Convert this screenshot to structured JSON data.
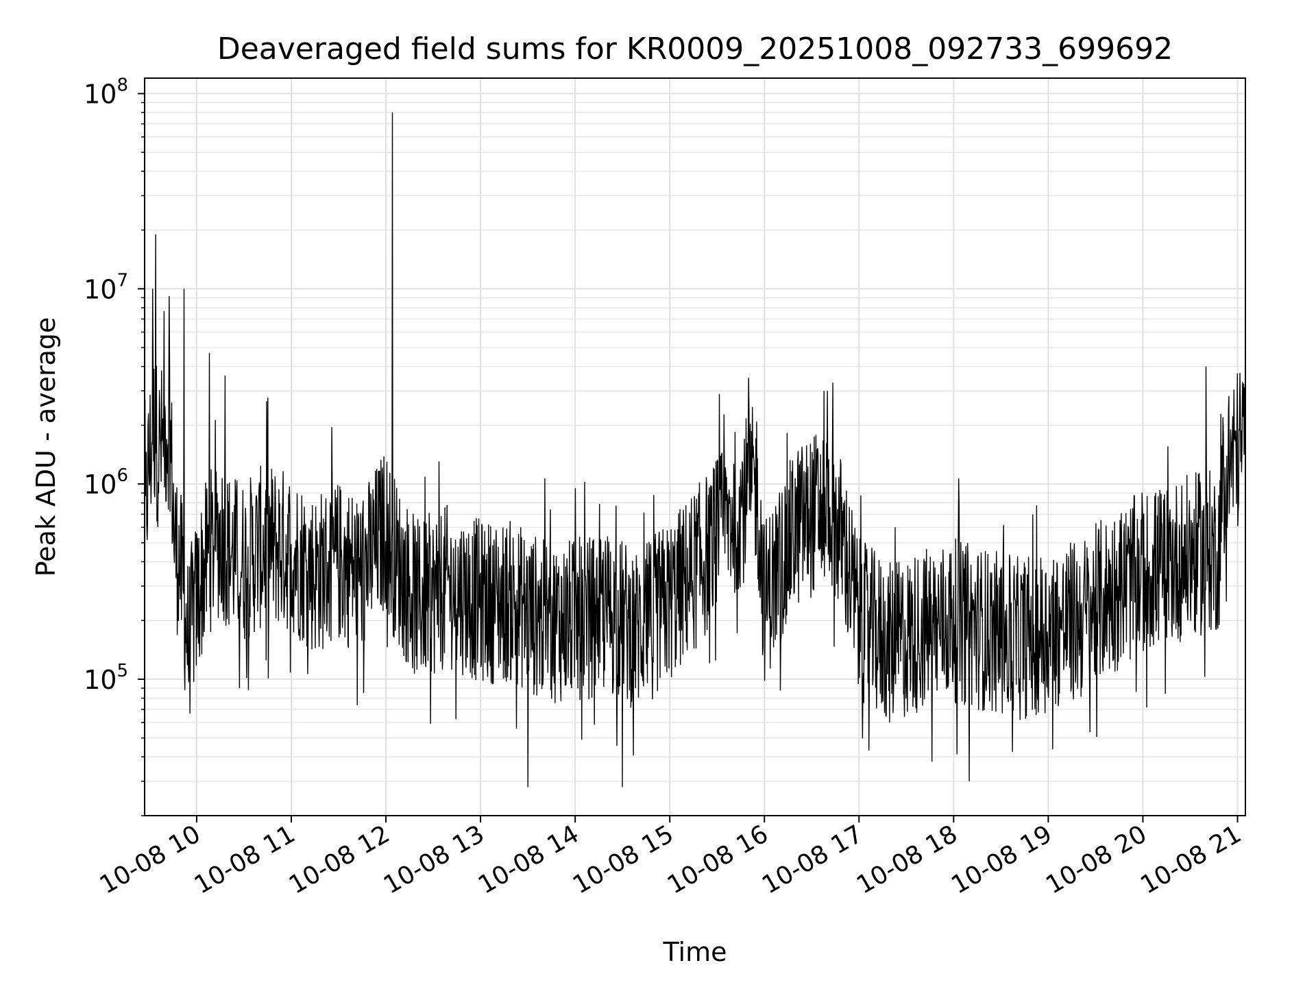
{
  "chart_data": {
    "type": "line",
    "title": "Deaveraged field sums for KR0009_20251008_092733_699692",
    "xlabel": "Time",
    "ylabel": "Peak ADU - average",
    "y_scale": "log",
    "ylim": [
      20000,
      120000000
    ],
    "xlim": [
      "2025-10-08 09:27",
      "2025-10-08 21:05"
    ],
    "grid": true,
    "legend": "none",
    "x_ticks": [
      {
        "label": "10-08 10",
        "value": "2025-10-08 10:00"
      },
      {
        "label": "10-08 11",
        "value": "2025-10-08 11:00"
      },
      {
        "label": "10-08 12",
        "value": "2025-10-08 12:00"
      },
      {
        "label": "10-08 13",
        "value": "2025-10-08 13:00"
      },
      {
        "label": "10-08 14",
        "value": "2025-10-08 14:00"
      },
      {
        "label": "10-08 15",
        "value": "2025-10-08 15:00"
      },
      {
        "label": "10-08 16",
        "value": "2025-10-08 16:00"
      },
      {
        "label": "10-08 17",
        "value": "2025-10-08 17:00"
      },
      {
        "label": "10-08 18",
        "value": "2025-10-08 18:00"
      },
      {
        "label": "10-08 19",
        "value": "2025-10-08 19:00"
      },
      {
        "label": "10-08 20",
        "value": "2025-10-08 20:00"
      },
      {
        "label": "10-08 21",
        "value": "2025-10-08 21:00"
      }
    ],
    "y_ticks": [
      {
        "base": "10",
        "exp": "5",
        "value": 100000
      },
      {
        "base": "10",
        "exp": "6",
        "value": 1000000
      },
      {
        "base": "10",
        "exp": "7",
        "value": 10000000
      },
      {
        "base": "10",
        "exp": "8",
        "value": 100000000
      }
    ],
    "series": [
      {
        "color": "#000000",
        "x": [
          "2025-10-08 09:27",
          "2025-10-08 09:29",
          "2025-10-08 09:31",
          "2025-10-08 09:33",
          "2025-10-08 09:35",
          "2025-10-08 09:37",
          "2025-10-08 09:40",
          "2025-10-08 09:43",
          "2025-10-08 09:46",
          "2025-10-08 09:49",
          "2025-10-08 09:51",
          "2025-10-08 09:53",
          "2025-10-08 09:55",
          "2025-10-08 09:57",
          "2025-10-08 10:00",
          "2025-10-08 10:04",
          "2025-10-08 10:08",
          "2025-10-08 10:12",
          "2025-10-08 10:16",
          "2025-10-08 10:20",
          "2025-10-08 10:30",
          "2025-10-08 10:45",
          "2025-10-08 11:00",
          "2025-10-08 11:15",
          "2025-10-08 11:30",
          "2025-10-08 11:45",
          "2025-10-08 12:00",
          "2025-10-08 12:04",
          "2025-10-08 12:10",
          "2025-10-08 12:20",
          "2025-10-08 12:40",
          "2025-10-08 13:00",
          "2025-10-08 13:20",
          "2025-10-08 13:40",
          "2025-10-08 14:00",
          "2025-10-08 14:20",
          "2025-10-08 14:40",
          "2025-10-08 15:00",
          "2025-10-08 15:20",
          "2025-10-08 15:40",
          "2025-10-08 15:55",
          "2025-10-08 16:00",
          "2025-10-08 16:20",
          "2025-10-08 16:40",
          "2025-10-08 16:50",
          "2025-10-08 17:00",
          "2025-10-08 17:20",
          "2025-10-08 17:40",
          "2025-10-08 18:00",
          "2025-10-08 18:20",
          "2025-10-08 18:40",
          "2025-10-08 19:00",
          "2025-10-08 19:20",
          "2025-10-08 19:40",
          "2025-10-08 20:00",
          "2025-10-08 20:20",
          "2025-10-08 20:40",
          "2025-10-08 20:48",
          "2025-10-08 20:52",
          "2025-10-08 21:00",
          "2025-10-08 21:04"
        ],
        "y": [
          500000,
          1100000,
          1500000,
          2000000,
          1600000,
          1500000,
          1800000,
          2000000,
          500000,
          400000,
          300000,
          200000,
          150000,
          200000,
          250000,
          350000,
          450000,
          500000,
          550000,
          450000,
          400000,
          500000,
          450000,
          350000,
          400000,
          350000,
          600000,
          450000,
          350000,
          250000,
          300000,
          250000,
          250000,
          200000,
          200000,
          220000,
          180000,
          250000,
          400000,
          700000,
          1000000,
          250000,
          600000,
          800000,
          500000,
          200000,
          150000,
          180000,
          200000,
          180000,
          160000,
          180000,
          200000,
          280000,
          350000,
          400000,
          450000,
          450000,
          1200000,
          1500000,
          1700000
        ]
      }
    ],
    "peaks": [
      {
        "x": "2025-10-08 09:32",
        "y": 10000000
      },
      {
        "x": "2025-10-08 09:34",
        "y": 19000000
      },
      {
        "x": "2025-10-08 09:52",
        "y": 10000000
      },
      {
        "x": "2025-10-08 10:08",
        "y": 4700000
      },
      {
        "x": "2025-10-08 10:18",
        "y": 3600000
      },
      {
        "x": "2025-10-08 12:04",
        "y": 80000000
      },
      {
        "x": "2025-10-08 15:50",
        "y": 3500000
      },
      {
        "x": "2025-10-08 16:40",
        "y": 3000000
      },
      {
        "x": "2025-10-08 20:40",
        "y": 4000000
      },
      {
        "x": "2025-10-08 13:30",
        "y": 28000
      },
      {
        "x": "2025-10-08 14:30",
        "y": 28000
      },
      {
        "x": "2025-10-08 18:10",
        "y": 30000
      }
    ]
  }
}
